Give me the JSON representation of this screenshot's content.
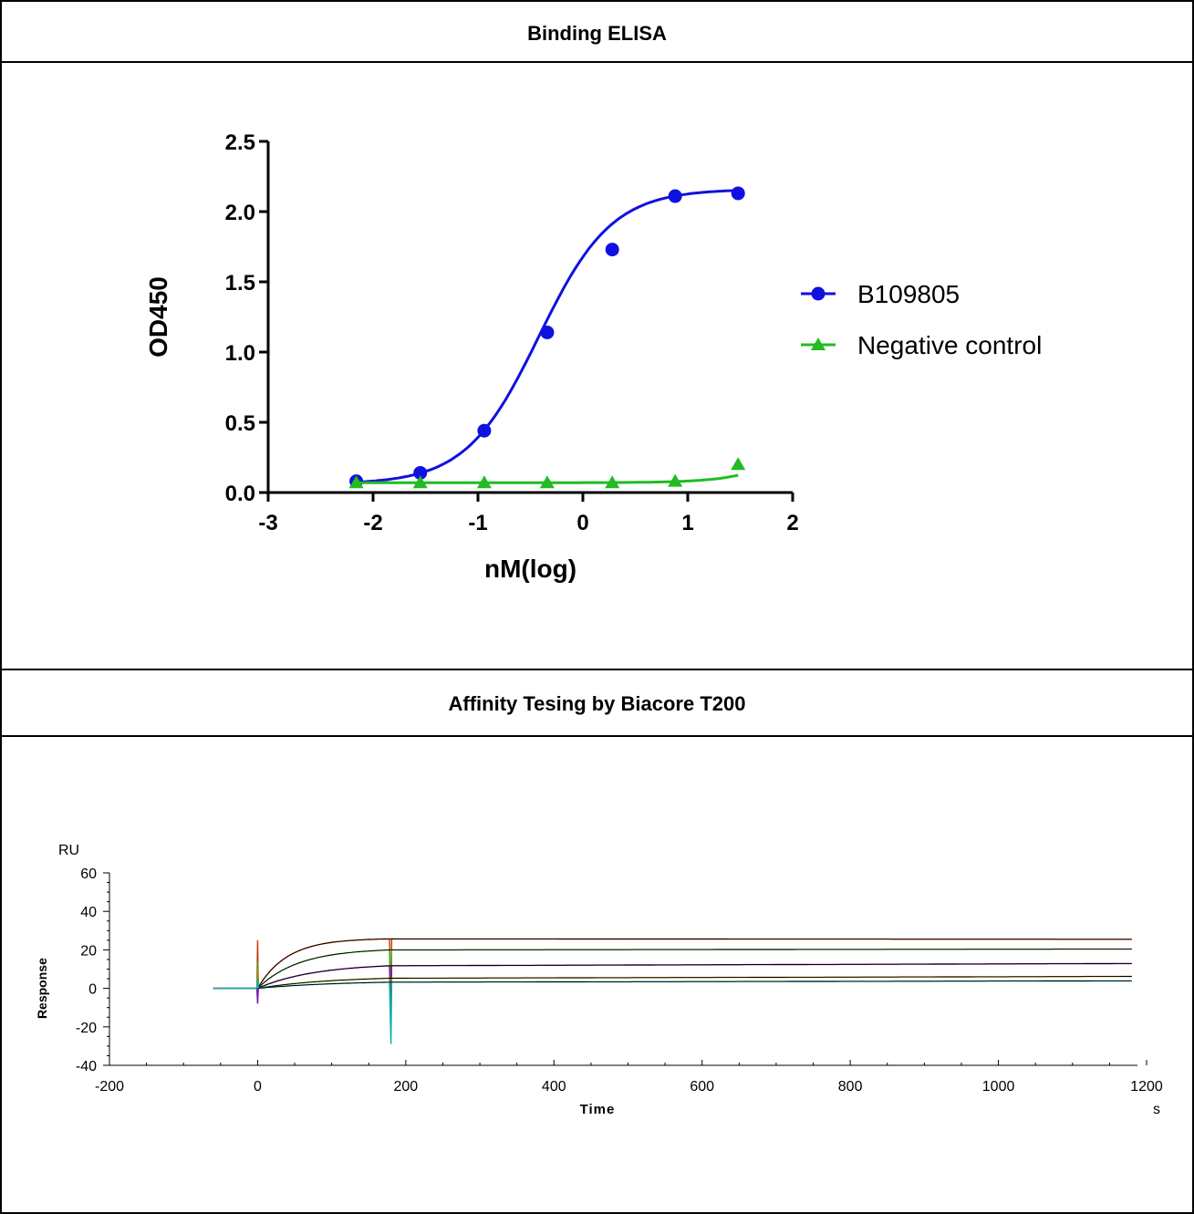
{
  "sections": {
    "elisa_title": "Binding ELISA",
    "spr_title": "Affinity Tesing by Biacore T200"
  },
  "colors": {
    "blue": "#1010e0",
    "green": "#22bb22",
    "border": "#000000"
  },
  "chart_data": [
    {
      "type": "line",
      "subtype": "scatter-with-sigmoid-fit",
      "title": "",
      "xlabel": "nM(log)",
      "ylabel": "OD450",
      "xlim": [
        -3,
        2
      ],
      "ylim": [
        0,
        2.5
      ],
      "xticks": [
        -3,
        -2,
        -1,
        0,
        1,
        2
      ],
      "xtick_labels": [
        "-3",
        "-2",
        "-1",
        "0",
        "1",
        "2"
      ],
      "yticks": [
        0,
        0.5,
        1,
        1.5,
        2,
        2.5
      ],
      "ytick_labels": [
        "0.0",
        "0.5",
        "1.0",
        "1.5",
        "2.0",
        "2.5"
      ],
      "legend_position": "right",
      "series": [
        {
          "name": "B109805",
          "marker": "circle",
          "color": "#1010e0",
          "x": [
            -2.16,
            -1.55,
            -0.94,
            -0.34,
            0.28,
            0.88,
            1.48
          ],
          "y": [
            0.08,
            0.14,
            0.44,
            1.14,
            1.73,
            2.11,
            2.13
          ],
          "fit": {
            "bottom": 0.06,
            "top": 2.16,
            "logEC50": -0.42,
            "hill": 1.25
          }
        },
        {
          "name": "Negative control",
          "marker": "triangle",
          "color": "#22bb22",
          "x": [
            -2.16,
            -1.55,
            -0.94,
            -0.34,
            0.28,
            0.88,
            1.48
          ],
          "y": [
            0.07,
            0.07,
            0.07,
            0.07,
            0.07,
            0.08,
            0.2
          ],
          "fit": {
            "bottom": 0.07,
            "top": 1.0,
            "logEC50": 2.35,
            "hill": 1.4
          }
        }
      ]
    },
    {
      "type": "line",
      "title": "",
      "xlabel": "Time",
      "x_unit": "s",
      "ylabel": "Response",
      "y_unit": "RU",
      "xlim": [
        -200,
        1200
      ],
      "ylim": [
        -40,
        60
      ],
      "xticks": [
        -200,
        0,
        200,
        400,
        600,
        800,
        1000,
        1200
      ],
      "xtick_labels": [
        "-200",
        "0",
        "200",
        "400",
        "600",
        "800",
        "1000",
        "1200"
      ],
      "yticks": [
        -40,
        -20,
        0,
        20,
        40,
        60
      ],
      "ytick_labels": [
        "-40",
        "-20",
        "0",
        "20",
        "40",
        "60"
      ],
      "association_start": 0,
      "dissociation_start": 180,
      "time_range": [
        -60,
        1180
      ],
      "series": [
        {
          "plateau": 26.0,
          "kobs": 0.025,
          "final": 25.5,
          "color": "#cc3300",
          "spike_start": 25,
          "spike_end": -8
        },
        {
          "plateau": 20.8,
          "kobs": 0.018,
          "final": 20.4,
          "color": "#44aa22",
          "spike_start": 14,
          "spike_end": -12
        },
        {
          "plateau": 13.0,
          "kobs": 0.013,
          "final": 12.9,
          "color": "#7711aa",
          "spike_start": -8,
          "spike_end": -16
        },
        {
          "plateau": 6.3,
          "kobs": 0.01,
          "final": 6.2,
          "color": "#aa8800",
          "spike_start": 10,
          "spike_end": -20
        },
        {
          "plateau": 4.0,
          "kobs": 0.009,
          "final": 3.9,
          "color": "#00b0b0",
          "spike_start": 5,
          "spike_end": -29
        }
      ]
    }
  ]
}
